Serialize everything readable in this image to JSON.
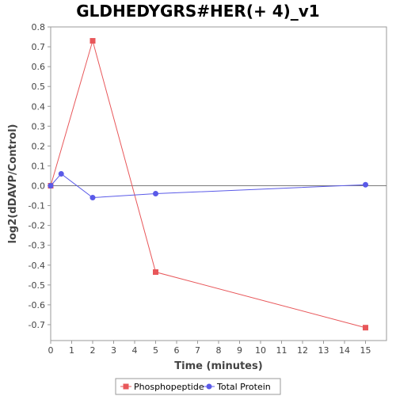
{
  "chart_data": {
    "type": "line",
    "title": "GLDHEDYGRS#HER(+ 4)_v1",
    "xlabel": "Time (minutes)",
    "ylabel": "log2(dDAVP/Control)",
    "xlim": [
      0,
      16
    ],
    "ylim": [
      -0.78,
      0.8
    ],
    "xticks": [
      0,
      1,
      2,
      3,
      4,
      5,
      6,
      7,
      8,
      9,
      10,
      11,
      12,
      13,
      14,
      15
    ],
    "yticks": [
      0.8,
      0.7,
      0.6,
      0.5,
      0.4,
      0.3,
      0.2,
      0.1,
      0.0,
      -0.1,
      -0.2,
      -0.3,
      -0.4,
      -0.5,
      -0.6,
      -0.7
    ],
    "ytick_labels": [
      "0.8",
      "0.7",
      "0.6",
      "0.5",
      "0.4",
      "0.3",
      "0.2",
      "0.1",
      "0.0",
      "-0.1",
      "-0.2",
      "-0.3",
      "-0.4",
      "-0.5",
      "-0.6",
      "-0.7"
    ],
    "grid": false,
    "zero_line": true,
    "legend_position": "bottom",
    "series": [
      {
        "name": "Phosphopeptide",
        "color": "#e8575a",
        "marker": "square",
        "x": [
          0,
          2,
          5,
          15
        ],
        "y": [
          0.0,
          0.73,
          -0.435,
          -0.715
        ]
      },
      {
        "name": "Total Protein",
        "color": "#5a5ae8",
        "marker": "circle",
        "x": [
          0,
          0.5,
          2,
          5,
          15
        ],
        "y": [
          0.0,
          0.06,
          -0.06,
          -0.04,
          0.005
        ]
      }
    ]
  }
}
